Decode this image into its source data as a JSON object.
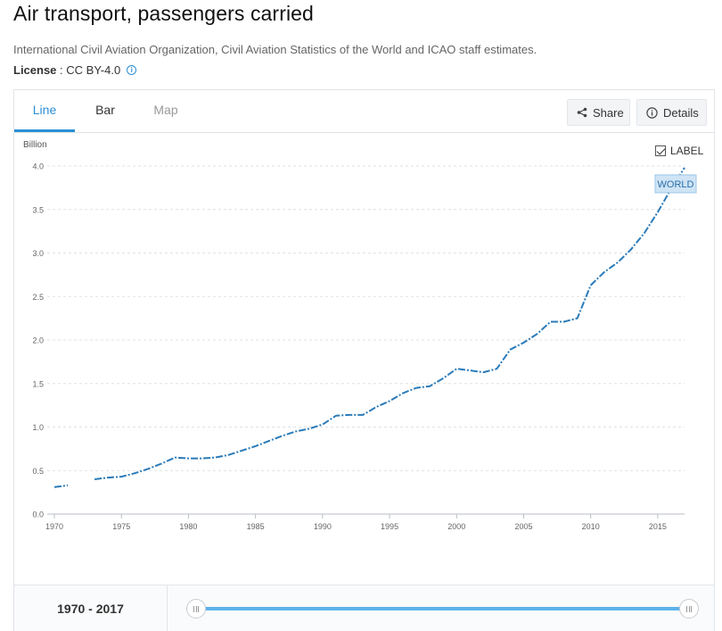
{
  "page": {
    "title": "Air transport, passengers carried",
    "source": "International Civil Aviation Organization, Civil Aviation Statistics of the World and ICAO staff estimates.",
    "license_label": "License",
    "license_sep": " : ",
    "license_value": "CC BY-4.0",
    "info_icon": "i"
  },
  "tabs": [
    {
      "label": "Line",
      "active": true
    },
    {
      "label": "Bar",
      "active": false
    },
    {
      "label": "Map",
      "active": false
    }
  ],
  "toolbar": {
    "share_label": "Share",
    "details_label": "Details"
  },
  "label_toggle": {
    "label": "LABEL",
    "checked": true
  },
  "range": {
    "label": "1970 - 2017",
    "start": 1970,
    "end": 2017
  },
  "colors": {
    "accent": "#2a8fd8",
    "series": "#2b7bb9",
    "slider": "#5fb3ea"
  },
  "chart_data": {
    "type": "line",
    "ylabel": "Billion",
    "ylim": [
      0,
      4.0
    ],
    "yticks": [
      0.0,
      0.5,
      1.0,
      1.5,
      2.0,
      2.5,
      3.0,
      3.5,
      4.0
    ],
    "ytick_labels": [
      "0.0",
      "0.5",
      "1.0",
      "1.5",
      "2.0",
      "2.5",
      "3.0",
      "3.5",
      "4.0"
    ],
    "xlim": [
      1970,
      2017
    ],
    "xticks": [
      1970,
      1975,
      1980,
      1985,
      1990,
      1995,
      2000,
      2005,
      2010,
      2015
    ],
    "grid": true,
    "line_style": "dash-dot",
    "series": [
      {
        "name": "WORLD",
        "points": [
          [
            1970,
            0.31
          ],
          [
            1971,
            0.33
          ],
          [
            1973,
            0.4
          ],
          [
            1974,
            0.42
          ],
          [
            1975,
            0.43
          ],
          [
            1976,
            0.47
          ],
          [
            1977,
            0.52
          ],
          [
            1978,
            0.58
          ],
          [
            1979,
            0.65
          ],
          [
            1980,
            0.64
          ],
          [
            1981,
            0.64
          ],
          [
            1982,
            0.65
          ],
          [
            1983,
            0.68
          ],
          [
            1984,
            0.73
          ],
          [
            1985,
            0.78
          ],
          [
            1986,
            0.84
          ],
          [
            1987,
            0.9
          ],
          [
            1988,
            0.95
          ],
          [
            1989,
            0.98
          ],
          [
            1990,
            1.03
          ],
          [
            1991,
            1.13
          ],
          [
            1992,
            1.14
          ],
          [
            1993,
            1.14
          ],
          [
            1994,
            1.23
          ],
          [
            1995,
            1.3
          ],
          [
            1996,
            1.39
          ],
          [
            1997,
            1.45
          ],
          [
            1998,
            1.47
          ],
          [
            1999,
            1.56
          ],
          [
            2000,
            1.67
          ],
          [
            2001,
            1.65
          ],
          [
            2002,
            1.63
          ],
          [
            2003,
            1.67
          ],
          [
            2004,
            1.89
          ],
          [
            2005,
            1.97
          ],
          [
            2006,
            2.07
          ],
          [
            2007,
            2.21
          ],
          [
            2008,
            2.21
          ],
          [
            2009,
            2.25
          ],
          [
            2010,
            2.63
          ],
          [
            2011,
            2.78
          ],
          [
            2012,
            2.89
          ],
          [
            2013,
            3.04
          ],
          [
            2014,
            3.23
          ],
          [
            2015,
            3.47
          ],
          [
            2016,
            3.74
          ],
          [
            2017,
            3.98
          ]
        ]
      }
    ]
  }
}
